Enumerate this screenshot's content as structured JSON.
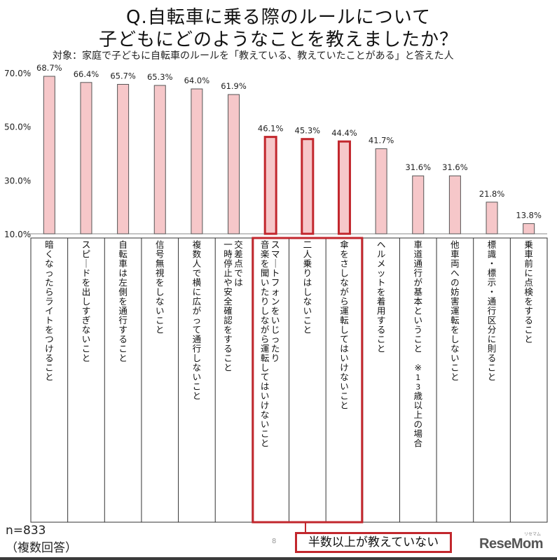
{
  "title_line1": "Q.自転車に乗る際のルールについて",
  "title_line2": "子どもにどのようなことを教えましたか？",
  "subtitle": "対象：家庭で子どもに自転車のルールを「教えている、教えていたことがある」と答えた人",
  "note_n": "n=833",
  "note_multi": "（複数回答）",
  "callout": "半数以上が教えていない",
  "page_number": "8",
  "logo": "ReseMom",
  "logo_small": "リセマム",
  "colors": {
    "bar_fill": "#f6c7c9",
    "bar_stroke": "#555555",
    "highlight": "#c2272d"
  },
  "chart_data": {
    "type": "bar",
    "ylim": [
      10,
      70
    ],
    "yticks": [
      "70.0%",
      "50.0%",
      "30.0%",
      "10.0%"
    ],
    "ytick_values": [
      70,
      50,
      30,
      10
    ],
    "categories": [
      "暗くなったらライトをつけること",
      "スピードを出しすぎないこと",
      "自転車は左側を通行すること",
      "信号無視をしないこと",
      "複数人で横に広がって通行しないこと",
      "交差点では|一時停止や安全確認をすること",
      "スマートフォンをいじったり|音楽を聞いたりしながら運転してはいけないこと",
      "二人乗りはしないこと",
      "傘をさしながら運転してはいけないこと",
      "ヘルメットを着用すること",
      "車道通行が基本ということ　※13歳以上の場合",
      "他車両への妨害運転をしないこと",
      "標識・標示・通行区分に則ること",
      "乗車前に点検をすること"
    ],
    "values": [
      68.7,
      66.4,
      65.7,
      65.3,
      64.0,
      61.9,
      46.1,
      45.3,
      44.4,
      41.7,
      31.6,
      31.6,
      21.8,
      13.8
    ],
    "labels": [
      "68.7%",
      "66.4%",
      "65.7%",
      "65.3%",
      "64.0%",
      "61.9%",
      "46.1%",
      "45.3%",
      "44.4%",
      "41.7%",
      "31.6%",
      "31.6%",
      "21.8%",
      "13.8%"
    ],
    "highlighted": [
      6,
      7,
      8
    ]
  }
}
